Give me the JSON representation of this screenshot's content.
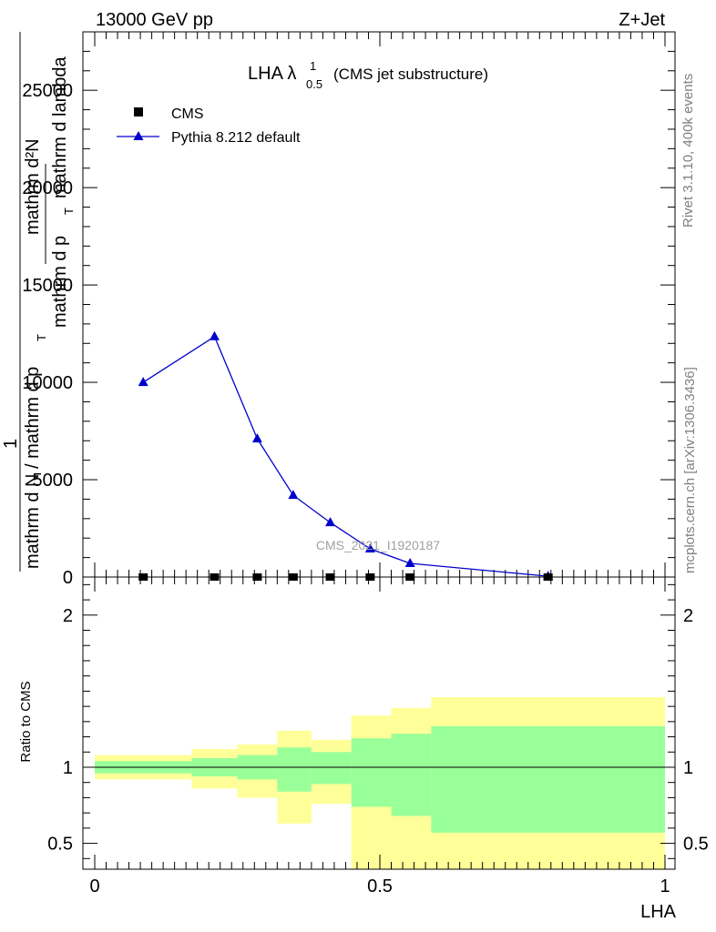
{
  "header": {
    "left_label": "13000 GeV pp",
    "right_label": "Z+Jet"
  },
  "side_labels": {
    "rivet": "Rivet 3.1.10,  400k events",
    "mcplots": "mcplots.cern.ch [arXiv:1306.3436]"
  },
  "watermark": "CMS_2021_I1920187",
  "colors": {
    "pythia": "#0000cc",
    "band_inner": "#99ff99",
    "band_outer": "#ffff99",
    "data": "#000000"
  },
  "chart_data": [
    {
      "type": "line",
      "title": {
        "main": "LHA λ",
        "superscript": "1",
        "subscript": "0.5",
        "suffix": "(CMS jet substructure)"
      },
      "ylabel": {
        "numerator": "mathrm d²N",
        "subscript": "T",
        "denominator_suffix": "mathrm d lambda",
        "denominator_prefix": "mathrm d p",
        "prefactor_num": "1",
        "prefactor_den": "mathrm d N / mathrm d p",
        "prefactor_den_sub": "T"
      },
      "xlim": [
        0,
        1
      ],
      "ylim": [
        0,
        28000
      ],
      "y_ticks": [
        {
          "value": 0,
          "label": "0"
        },
        {
          "value": 5000,
          "label": "5000"
        },
        {
          "value": 10000,
          "label": "10000"
        },
        {
          "value": 15000,
          "label": "15000"
        },
        {
          "value": 20000,
          "label": "20000"
        },
        {
          "value": 25000,
          "label": "25000"
        }
      ],
      "legend": {
        "placement": "top-left",
        "entries": [
          "CMS",
          "Pythia 8.212 default"
        ]
      },
      "series": [
        {
          "name": "CMS",
          "marker": "square",
          "x": [
            0.085,
            0.21,
            0.285,
            0.348,
            0.413,
            0.483,
            0.553,
            0.795
          ],
          "y": [
            0,
            0,
            0,
            0,
            0,
            0,
            0,
            0
          ]
        },
        {
          "name": "Pythia 8.212 default",
          "marker": "triangle",
          "x": [
            0.085,
            0.21,
            0.285,
            0.348,
            0.413,
            0.483,
            0.553,
            0.795
          ],
          "y": [
            10000,
            12350,
            7100,
            4200,
            2800,
            1450,
            700,
            40
          ]
        }
      ]
    },
    {
      "type": "area",
      "ylabel": "Ratio to CMS",
      "xlabel": "LHA",
      "xlim": [
        0,
        1
      ],
      "ylim": [
        0.33,
        2.25
      ],
      "x_ticks": [
        {
          "value": 0,
          "label": "0"
        },
        {
          "value": 0.5,
          "label": "0.5"
        },
        {
          "value": 1,
          "label": "1"
        }
      ],
      "y_ticks": [
        {
          "value": 0.5,
          "label": "0.5"
        },
        {
          "value": 1,
          "label": "1"
        },
        {
          "value": 2,
          "label": "2"
        }
      ],
      "reference_line": 1,
      "bands": [
        {
          "x0": 0.0,
          "x1": 0.17,
          "inner_low": 0.96,
          "inner_high": 1.04,
          "outer_low": 0.92,
          "outer_high": 1.08
        },
        {
          "x0": 0.17,
          "x1": 0.25,
          "inner_low": 0.94,
          "inner_high": 1.06,
          "outer_low": 0.86,
          "outer_high": 1.12
        },
        {
          "x0": 0.25,
          "x1": 0.32,
          "inner_low": 0.92,
          "inner_high": 1.08,
          "outer_low": 0.8,
          "outer_high": 1.15
        },
        {
          "x0": 0.32,
          "x1": 0.38,
          "inner_low": 0.84,
          "inner_high": 1.13,
          "outer_low": 0.63,
          "outer_high": 1.24
        },
        {
          "x0": 0.38,
          "x1": 0.45,
          "inner_low": 0.89,
          "inner_high": 1.1,
          "outer_low": 0.76,
          "outer_high": 1.18
        },
        {
          "x0": 0.45,
          "x1": 0.52,
          "inner_low": 0.74,
          "inner_high": 1.19,
          "outer_low": 0.33,
          "outer_high": 1.34
        },
        {
          "x0": 0.52,
          "x1": 0.59,
          "inner_low": 0.68,
          "inner_high": 1.22,
          "outer_low": 0.33,
          "outer_high": 1.39
        },
        {
          "x0": 0.59,
          "x1": 1.0,
          "inner_low": 0.57,
          "inner_high": 1.27,
          "outer_low": 0.33,
          "outer_high": 1.46
        }
      ]
    }
  ]
}
